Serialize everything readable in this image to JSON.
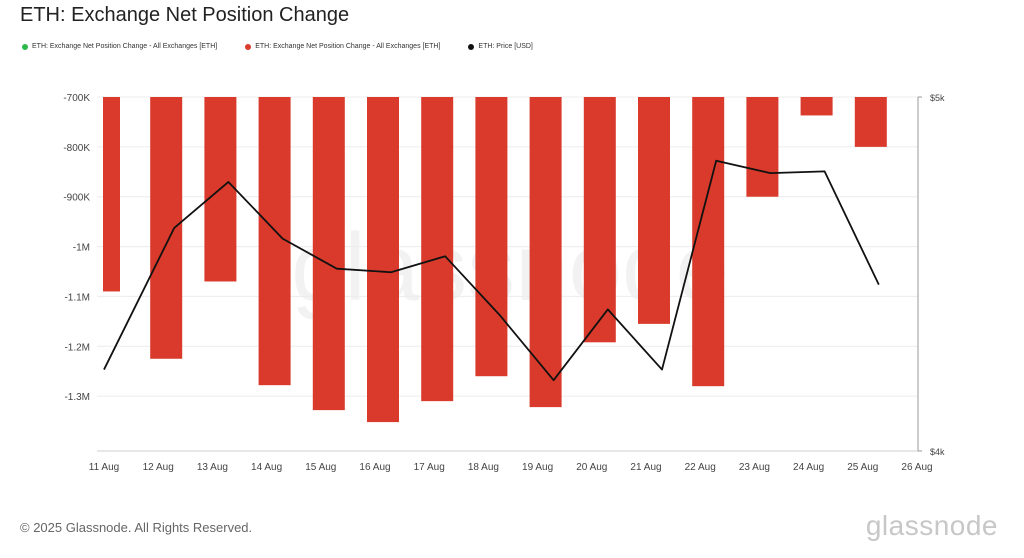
{
  "title": "ETH: Exchange Net Position Change",
  "legend": [
    {
      "label": "ETH: Exchange Net Position Change - All Exchanges [ETH]",
      "color": "#2eb84a"
    },
    {
      "label": "ETH: Exchange Net Position Change - All Exchanges [ETH]",
      "color": "#d93a2b"
    },
    {
      "label": "ETH: Price [USD]",
      "color": "#111111"
    }
  ],
  "footer": "© 2025 Glassnode. All Rights Reserved.",
  "logo": "glassnode",
  "watermark": "glassnode",
  "chart_data": {
    "type": "bar",
    "categories": [
      "11 Aug",
      "12 Aug",
      "13 Aug",
      "14 Aug",
      "15 Aug",
      "16 Aug",
      "17 Aug",
      "18 Aug",
      "19 Aug",
      "20 Aug",
      "21 Aug",
      "22 Aug",
      "23 Aug",
      "24 Aug",
      "25 Aug",
      "26 Aug"
    ],
    "series": [
      {
        "name": "ETH: Exchange Net Position Change - All Exchanges [ETH]",
        "type": "bar",
        "color": "#d93a2b",
        "values": [
          -1090000,
          -1225000,
          -1070000,
          -1278000,
          -1328000,
          -1352000,
          -1310000,
          -1260000,
          -1322000,
          -1192000,
          -1155000,
          -1280000,
          -900000,
          -737000,
          -800000,
          null
        ]
      },
      {
        "name": "ETH: Price [USD]",
        "type": "line",
        "color": "#111111",
        "axis": "right",
        "values": [
          4230,
          4630,
          4760,
          4600,
          4515,
          4505,
          4550,
          4385,
          4200,
          4400,
          4230,
          4820,
          4785,
          4790,
          4470,
          null
        ]
      }
    ],
    "y_left": {
      "ticks": [
        -700000,
        -800000,
        -900000,
        -1000000,
        -1100000,
        -1200000,
        -1300000
      ],
      "tick_labels": [
        "-700K",
        "-800K",
        "-900K",
        "-1M",
        "-1.1M",
        "-1.2M",
        "-1.3M"
      ],
      "range": [
        -1410000,
        -700000
      ]
    },
    "y_right": {
      "ticks": [
        5000,
        4000
      ],
      "tick_labels": [
        "$5k",
        "$4k"
      ],
      "range": [
        4000,
        5000
      ]
    },
    "grid": true
  }
}
